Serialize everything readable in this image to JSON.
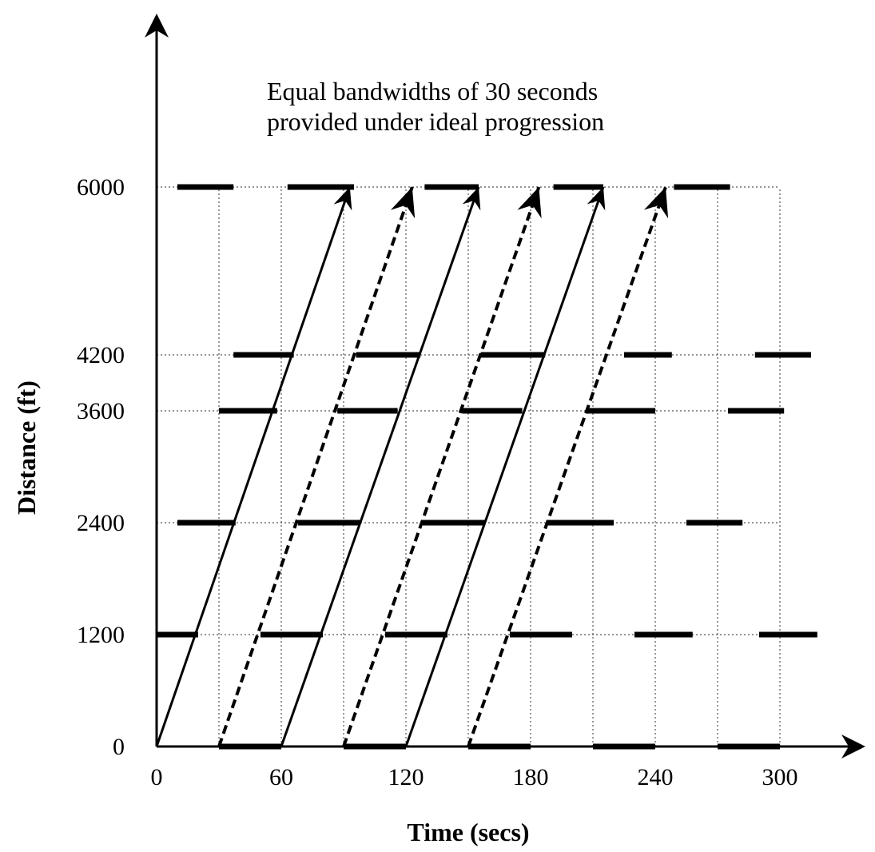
{
  "chart_data": {
    "type": "line",
    "xlabel": "Time (secs)",
    "ylabel": "Distance (ft)",
    "annotation": [
      "Equal bandwidths of 30 seconds",
      "provided under ideal progression"
    ],
    "xlim": [
      0,
      330
    ],
    "ylim": [
      0,
      6000
    ],
    "x_ticks": [
      0,
      60,
      120,
      180,
      240,
      300
    ],
    "y_ticks": [
      0,
      1200,
      2400,
      3600,
      4200,
      6000
    ],
    "grid": true,
    "green_bands": [
      {
        "distance": 0,
        "intervals": [
          [
            30,
            60
          ],
          [
            90,
            120
          ],
          [
            150,
            180
          ],
          [
            210,
            240
          ],
          [
            270,
            300
          ]
        ]
      },
      {
        "distance": 1200,
        "intervals": [
          [
            0,
            20
          ],
          [
            50,
            80
          ],
          [
            110,
            140
          ],
          [
            170,
            200
          ],
          [
            230,
            258
          ],
          [
            290,
            318
          ]
        ]
      },
      {
        "distance": 2400,
        "intervals": [
          [
            10,
            38
          ],
          [
            68,
            98
          ],
          [
            128,
            158
          ],
          [
            188,
            220
          ],
          [
            255,
            282
          ]
        ]
      },
      {
        "distance": 3600,
        "intervals": [
          [
            30,
            58
          ],
          [
            87,
            116
          ],
          [
            147,
            176
          ],
          [
            207,
            240
          ],
          [
            275,
            302
          ]
        ]
      },
      {
        "distance": 4200,
        "intervals": [
          [
            37,
            66
          ],
          [
            96,
            127
          ],
          [
            156,
            187
          ],
          [
            225,
            248
          ],
          [
            288,
            315
          ]
        ]
      },
      {
        "distance": 6000,
        "intervals": [
          [
            10,
            37
          ],
          [
            63,
            95
          ],
          [
            129,
            155
          ],
          [
            191,
            215
          ],
          [
            249,
            276
          ]
        ]
      }
    ],
    "series": [
      {
        "style": "solid",
        "points": [
          [
            0,
            0
          ],
          [
            93,
            6000
          ]
        ]
      },
      {
        "style": "dashed",
        "points": [
          [
            30,
            0
          ],
          [
            123,
            6000
          ]
        ]
      },
      {
        "style": "solid",
        "points": [
          [
            60,
            0
          ],
          [
            155,
            6000
          ]
        ]
      },
      {
        "style": "dashed",
        "points": [
          [
            90,
            0
          ],
          [
            184,
            6000
          ]
        ]
      },
      {
        "style": "solid",
        "points": [
          [
            120,
            0
          ],
          [
            215,
            6000
          ]
        ]
      },
      {
        "style": "dashed",
        "points": [
          [
            150,
            0
          ],
          [
            245,
            6000
          ]
        ]
      }
    ]
  }
}
